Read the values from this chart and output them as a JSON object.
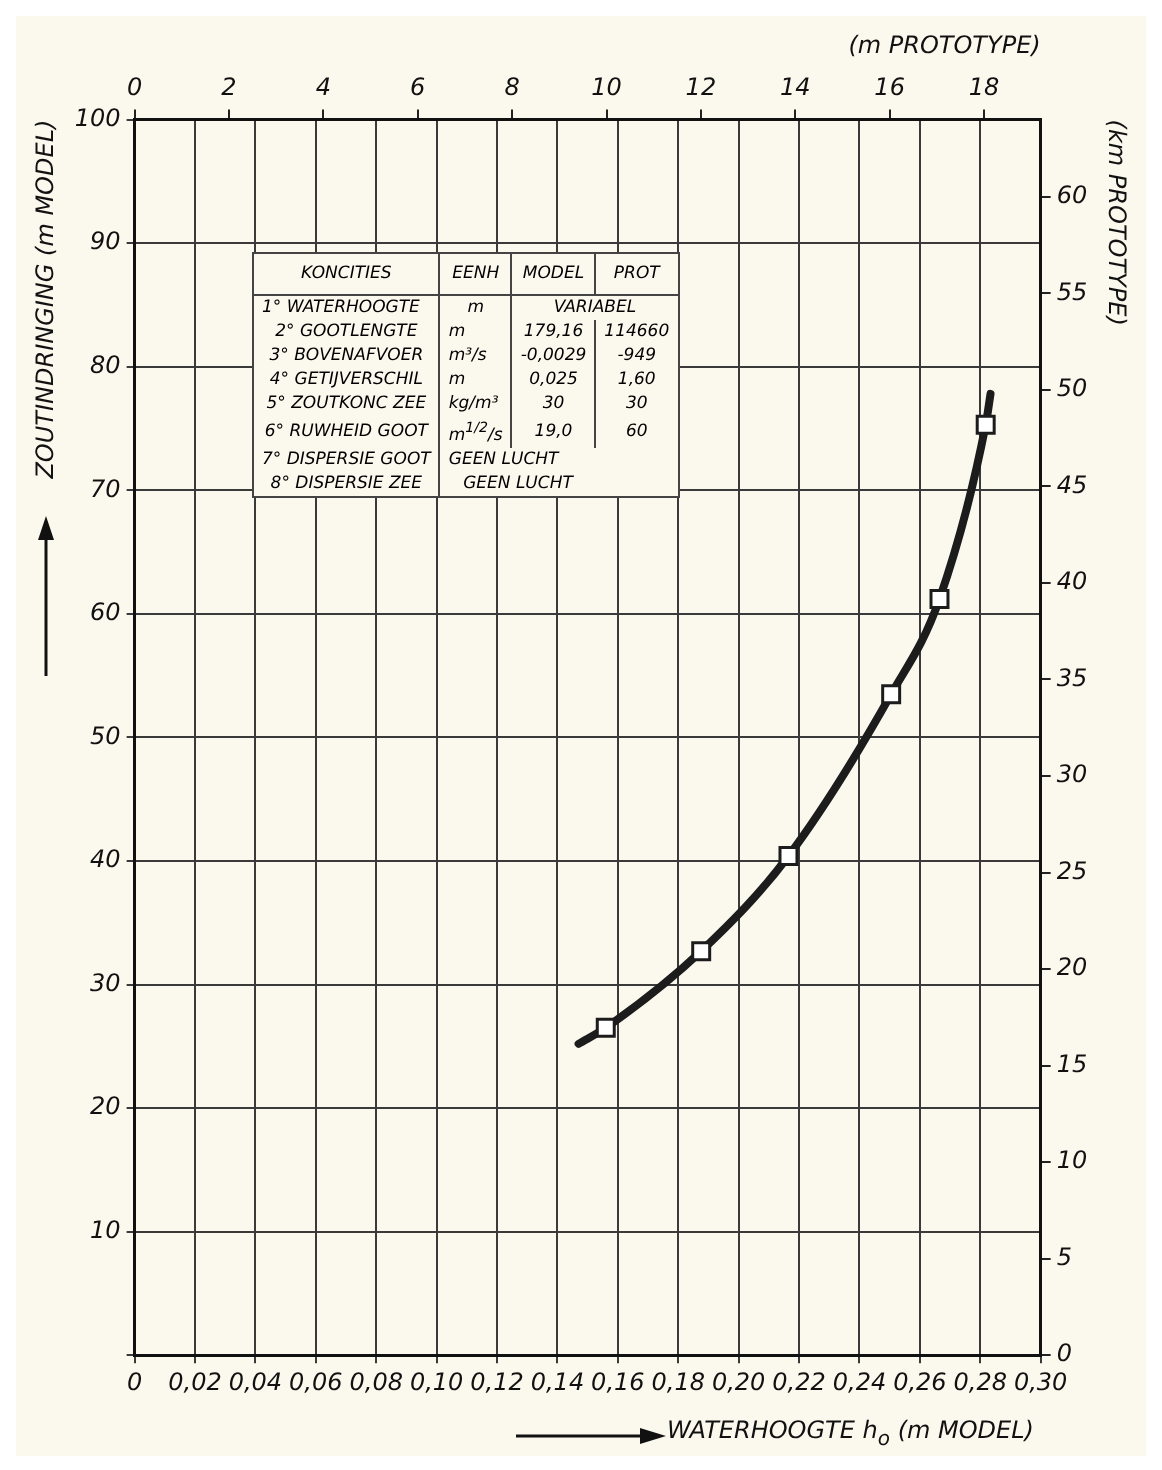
{
  "chart_data": {
    "type": "line",
    "xlabel": "WATERHOOGTE h$_{o}$ (m MODEL)",
    "ylabel": "ZOUTINDRINGING (m MODEL)",
    "y2label": "(km PROTOTYPE)",
    "x2label": "(m PROTOTYPE)",
    "xlim": [
      0,
      0.3
    ],
    "xticks": [
      0,
      {
        "value": 0.02,
        "label": "0,02"
      },
      {
        "value": 0.04,
        "label": "0,04"
      },
      {
        "value": 0.06,
        "label": "0,06"
      },
      {
        "value": 0.08,
        "label": "0,08"
      },
      {
        "value": 0.1,
        "label": "0,10"
      },
      {
        "value": 0.12,
        "label": "0,12"
      },
      {
        "value": 0.14,
        "label": "0,14"
      },
      {
        "value": 0.16,
        "label": "0,16"
      },
      {
        "value": 0.18,
        "label": "0,18"
      },
      {
        "value": 0.2,
        "label": "0,20"
      },
      {
        "value": 0.22,
        "label": "0,22"
      },
      {
        "value": 0.24,
        "label": "0,24"
      },
      {
        "value": 0.26,
        "label": "0,26"
      },
      {
        "value": 0.28,
        "label": "0,28"
      },
      {
        "value": 0.3,
        "label": "0,30"
      }
    ],
    "x2lim": [
      0,
      19.2
    ],
    "x2ticks": [
      0,
      2,
      4,
      6,
      8,
      10,
      12,
      14,
      16,
      18
    ],
    "ylim": [
      0,
      100
    ],
    "yticks": [
      {
        "value": 0,
        "label": null
      },
      10,
      20,
      30,
      40,
      50,
      60,
      70,
      80,
      90,
      100
    ],
    "y2lim": [
      0,
      64
    ],
    "y2ticks": [
      0,
      5,
      10,
      15,
      20,
      25,
      30,
      35,
      40,
      45,
      50,
      55,
      60
    ],
    "grid": true,
    "legend": false,
    "series": [
      {
        "type": "line",
        "marker": "none",
        "color": "#1c1c1c",
        "x": [
          0.147,
          0.156,
          0.1876,
          0.2165,
          0.2505,
          0.2665,
          0.2818,
          0.2834
        ],
        "values": [
          25.2,
          26.5,
          32.7,
          40.4,
          53.5,
          61.2,
          75.3,
          77.8
        ]
      },
      {
        "type": "scatter",
        "marker": "square",
        "color": "#1c1c1c",
        "x": [
          0.156,
          0.1876,
          0.2165,
          0.2505,
          0.2665,
          0.2818
        ],
        "values": [
          26.5,
          32.7,
          40.4,
          53.5,
          61.2,
          75.3
        ]
      }
    ],
    "annotations": [
      "KONCITIES",
      "EENH",
      "MODEL",
      "PROT",
      "1° WATERHOOGTE",
      "m",
      "VARIABEL",
      "2° GOOTLENGTE",
      "m",
      "179,16",
      "114660",
      "3° BOVENAFVOER",
      "m³/s",
      "-0,0029",
      "-949",
      "4° GETIJVERSCHIL",
      "m",
      "0,025",
      "1,60",
      "5° ZOUTKONC ZEE",
      "kg/m³",
      "30",
      "30",
      "6° RUWHEID GOOT",
      "m$^{1/2}$/s",
      "19,0",
      "60",
      "7° DISPERSIE GOOT",
      "GEEN LUCHT",
      "8° DISPERSIE ZEE",
      "GEEN LUCHT"
    ]
  }
}
